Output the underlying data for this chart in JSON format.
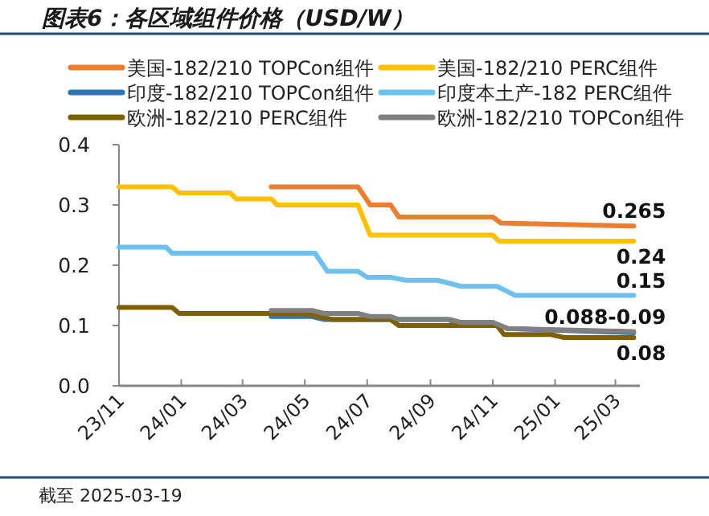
{
  "chart_data": {
    "type": "line",
    "title": "图表6：各区域组件价格（USD/W）",
    "xlim": [
      "2023-11-01",
      "2025-03-25"
    ],
    "xticks": [
      {
        "value": "2023-11-01",
        "label": "23/11"
      },
      {
        "value": "2024-01-01",
        "label": "24/01"
      },
      {
        "value": "2024-03-01",
        "label": "24/03"
      },
      {
        "value": "2024-05-01",
        "label": "24/05"
      },
      {
        "value": "2024-07-01",
        "label": "24/07"
      },
      {
        "value": "2024-09-01",
        "label": "24/09"
      },
      {
        "value": "2024-11-01",
        "label": "24/11"
      },
      {
        "value": "2025-01-01",
        "label": "25/01"
      },
      {
        "value": "2025-03-01",
        "label": "25/03"
      }
    ],
    "ylim": [
      0,
      0.4
    ],
    "yticks": [
      {
        "value": 0,
        "label": "0.0"
      },
      0.1,
      0.2,
      0.3,
      0.4
    ],
    "legend": "top",
    "grid": false,
    "marker": "none",
    "line_style": "solid",
    "series": [
      {
        "name": "美国-182/210 TOPCon组件",
        "color": "#ed7d31",
        "x": [
          "2024-03-29",
          "2024-06-22",
          "2024-07-04",
          "2024-07-24",
          "2024-08-01",
          "2024-11-01",
          "2024-11-09",
          "2025-03-19"
        ],
        "values": [
          0.33,
          0.33,
          0.3,
          0.3,
          0.28,
          0.28,
          0.27,
          0.265
        ]
      },
      {
        "name": "美国-182/210 PERC组件",
        "color": "#ffc000",
        "x": [
          "2023-11-01",
          "2023-12-23",
          "2023-12-30",
          "2024-02-18",
          "2024-02-24",
          "2024-03-29",
          "2024-04-04",
          "2024-06-22",
          "2024-07-04",
          "2024-11-01",
          "2024-11-07",
          "2025-03-19"
        ],
        "values": [
          0.33,
          0.33,
          0.32,
          0.32,
          0.31,
          0.31,
          0.3,
          0.3,
          0.25,
          0.25,
          0.24,
          0.24
        ]
      },
      {
        "name": "印度-182/210 TOPCon组件",
        "color": "#2e75b6",
        "x": [
          "2024-03-29",
          "2024-05-08",
          "2024-05-20",
          "2024-09-18",
          "2024-09-26",
          "2024-11-01",
          "2024-11-15",
          "2025-03-19"
        ],
        "values": [
          0.115,
          0.115,
          0.11,
          0.11,
          0.105,
          0.105,
          0.095,
          0.088
        ]
      },
      {
        "name": "印度本土产-182 PERC组件",
        "color": "#6ec1ee",
        "x": [
          "2023-11-01",
          "2023-12-17",
          "2023-12-23",
          "2024-05-11",
          "2024-05-23",
          "2024-06-22",
          "2024-07-01",
          "2024-07-24",
          "2024-08-08",
          "2024-09-08",
          "2024-10-01",
          "2024-11-05",
          "2024-11-23",
          "2025-03-19"
        ],
        "values": [
          0.23,
          0.23,
          0.22,
          0.22,
          0.19,
          0.19,
          0.18,
          0.18,
          0.175,
          0.175,
          0.165,
          0.165,
          0.15,
          0.15
        ]
      },
      {
        "name": "欧洲-182/210 PERC组件",
        "color": "#7f6000",
        "x": [
          "2023-11-01",
          "2023-12-23",
          "2023-12-30",
          "2024-05-01",
          "2024-05-28",
          "2024-07-24",
          "2024-08-01",
          "2024-11-05",
          "2024-11-12",
          "2024-12-28",
          "2025-01-10",
          "2025-03-19"
        ],
        "values": [
          0.13,
          0.13,
          0.12,
          0.12,
          0.11,
          0.11,
          0.1,
          0.1,
          0.085,
          0.085,
          0.08,
          0.08
        ]
      },
      {
        "name": "欧洲-182/210 TOPCon组件",
        "color": "#808080",
        "x": [
          "2024-03-29",
          "2024-05-08",
          "2024-05-20",
          "2024-06-22",
          "2024-07-04",
          "2024-07-24",
          "2024-08-01",
          "2024-09-20",
          "2024-10-01",
          "2024-11-01",
          "2024-11-16",
          "2025-03-19"
        ],
        "values": [
          0.125,
          0.125,
          0.12,
          0.12,
          0.115,
          0.115,
          0.11,
          0.11,
          0.105,
          0.105,
          0.095,
          0.09
        ]
      }
    ],
    "annotations": [
      {
        "text": "0.265",
        "x": "2025-03-19",
        "y": 0.265
      },
      {
        "text": "0.24",
        "x": "2025-03-19",
        "y": 0.24
      },
      {
        "text": "0.15",
        "x": "2025-03-19",
        "y": 0.15
      },
      {
        "text": "0.088-0.09",
        "x": "2025-03-19",
        "y": 0.09
      },
      {
        "text": "0.08",
        "x": "2025-03-19",
        "y": 0.08
      },
      "截至 2025-03-19"
    ]
  }
}
